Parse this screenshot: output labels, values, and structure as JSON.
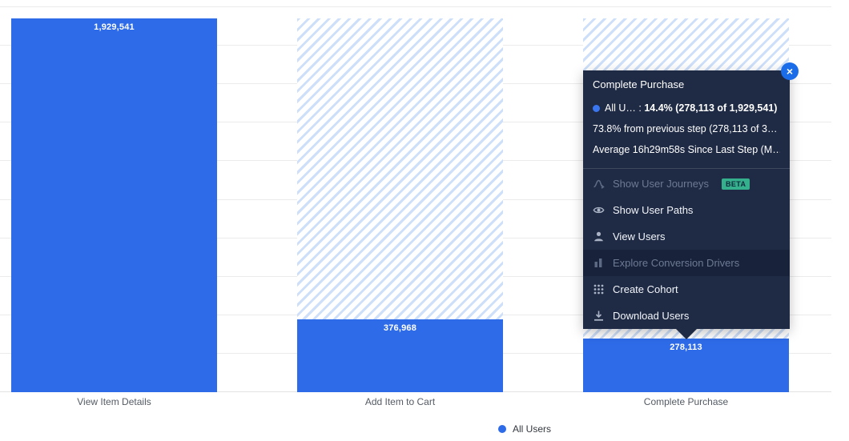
{
  "colors": {
    "bar_blue": "#2e6be8",
    "hatch_blue": "#cddff9",
    "tooltip_bg": "#1f2a44",
    "badge_teal": "#35b08d",
    "close_blue": "#1b6ce8"
  },
  "chart_data": {
    "type": "bar",
    "subtype": "funnel",
    "categories": [
      "View Item Details",
      "Add Item to Cart",
      "Complete Purchase"
    ],
    "series": [
      {
        "name": "All Users",
        "values": [
          1929541,
          376968,
          278113
        ],
        "color": "#2e6be8"
      }
    ],
    "value_labels": [
      "1,929,541",
      "376,968",
      "278,113"
    ],
    "legend": [
      "All Users"
    ],
    "legend_position": "bottom-center",
    "grid": true,
    "ylim": [
      0,
      1929541
    ]
  },
  "tooltip": {
    "title": "Complete Purchase",
    "series_short": "All U…",
    "separator": " : ",
    "headline": "14.4% (278,113 of 1,929,541)",
    "previous_step_line": "73.8% from previous step (278,113 of 3…",
    "average_line": "Average 16h29m58s Since Last Step (M…",
    "close_icon": "×",
    "menu": [
      {
        "label": "Show User Journeys",
        "icon": "journeys-icon",
        "disabled": true,
        "highlighted": false,
        "badge": "BETA"
      },
      {
        "label": "Show User Paths",
        "icon": "eye-icon",
        "disabled": false,
        "highlighted": false
      },
      {
        "label": "View Users",
        "icon": "user-icon",
        "disabled": false,
        "highlighted": false
      },
      {
        "label": "Explore Conversion Drivers",
        "icon": "bar-chart-icon",
        "disabled": true,
        "highlighted": true
      },
      {
        "label": "Create Cohort",
        "icon": "cohort-icon",
        "disabled": false,
        "highlighted": false
      },
      {
        "label": "Download Users",
        "icon": "download-icon",
        "disabled": false,
        "highlighted": false
      }
    ]
  }
}
